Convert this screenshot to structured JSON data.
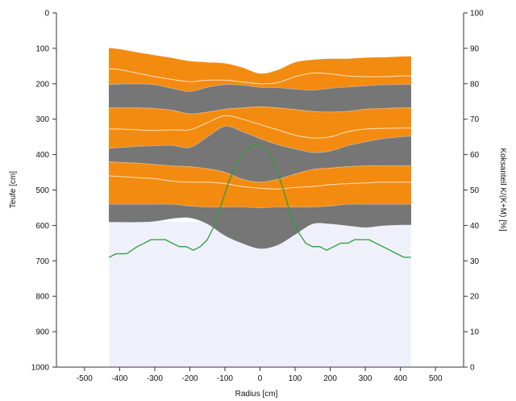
{
  "chart_data": {
    "type": "area",
    "title": "",
    "xlabel": "Radius [cm]",
    "ylabel_left": "Teufe [cm]",
    "ylabel_right": "Koksanteil K/(K+M) [%]",
    "xlim": [
      -580,
      580
    ],
    "ylim_left": [
      0,
      1000
    ],
    "ylim_right": [
      0,
      100
    ],
    "y_left_reversed": true,
    "grid": false,
    "x_ticks": [
      -500,
      -400,
      -300,
      -200,
      -100,
      0,
      100,
      200,
      300,
      400,
      500
    ],
    "x_tick_labels": [
      "-500",
      "-400",
      "-300",
      "-200",
      "-100",
      "0",
      "100",
      "200",
      "300",
      "400",
      "500"
    ],
    "y_left_ticks": [
      0,
      100,
      200,
      300,
      400,
      500,
      600,
      700,
      800,
      900,
      1000
    ],
    "y_left_tick_labels": [
      "0",
      "100",
      "200",
      "300",
      "400",
      "500",
      "600",
      "700",
      "800",
      "900",
      "1000"
    ],
    "y_right_ticks": [
      0,
      10,
      20,
      30,
      40,
      50,
      60,
      70,
      80,
      90,
      100
    ],
    "y_right_tick_labels": [
      "0",
      "10",
      "20",
      "30",
      "40",
      "50",
      "60",
      "70",
      "80",
      "90",
      "100"
    ],
    "colors": {
      "ore": "#f38b10",
      "coke": "#767676",
      "background": "#eef1fa",
      "sublayer_line": "#fde2bf",
      "ratio_line": "#2f9a3a",
      "axis": "#333333"
    },
    "x_positions": [
      -430,
      -400,
      -350,
      -300,
      -250,
      -200,
      -150,
      -100,
      -50,
      0,
      50,
      100,
      150,
      200,
      250,
      300,
      350,
      400,
      430
    ],
    "background_region": {
      "x_range": [
        -430,
        430
      ],
      "y_range": [
        590,
        1000
      ]
    },
    "layer_boundaries": [
      [
        100,
        103,
        112,
        120,
        128,
        137,
        140,
        143,
        155,
        172,
        162,
        140,
        133,
        130,
        130,
        127,
        126,
        124,
        123
      ],
      [
        202,
        201,
        200,
        203,
        213,
        222,
        210,
        202,
        204,
        210,
        211,
        215,
        218,
        213,
        209,
        206,
        203,
        202,
        202
      ],
      [
        268,
        268,
        268,
        270,
        275,
        285,
        280,
        272,
        268,
        265,
        268,
        273,
        278,
        280,
        278,
        272,
        270,
        268,
        268
      ],
      [
        383,
        380,
        377,
        375,
        374,
        380,
        350,
        320,
        335,
        355,
        372,
        384,
        394,
        390,
        375,
        364,
        355,
        350,
        348
      ],
      [
        420,
        422,
        424,
        428,
        432,
        434,
        440,
        450,
        470,
        478,
        470,
        455,
        442,
        438,
        434,
        432,
        432,
        432,
        432
      ],
      [
        540,
        540,
        540,
        540,
        540,
        545,
        548,
        548,
        548,
        550,
        548,
        548,
        548,
        545,
        540,
        540,
        540,
        540,
        540
      ],
      [
        590,
        590,
        590,
        588,
        580,
        578,
        595,
        628,
        650,
        665,
        655,
        625,
        595,
        595,
        600,
        605,
        600,
        598,
        598
      ]
    ],
    "layer_types": [
      "ore",
      "coke",
      "ore",
      "coke",
      "ore",
      "coke"
    ],
    "sublayer_lines": [
      [
        158,
        160,
        170,
        180,
        188,
        194,
        190,
        190,
        195,
        200,
        197,
        180,
        170,
        172,
        178,
        180,
        180,
        178,
        178
      ],
      [
        328,
        328,
        330,
        332,
        330,
        330,
        310,
        290,
        300,
        315,
        330,
        345,
        353,
        350,
        335,
        328,
        326,
        325,
        325
      ],
      [
        460,
        462,
        465,
        468,
        475,
        478,
        478,
        482,
        490,
        495,
        497,
        493,
        490,
        485,
        482,
        480,
        478,
        478,
        478
      ]
    ],
    "coke_ratio": {
      "name": "",
      "x": [
        -430,
        -410,
        -380,
        -350,
        -330,
        -310,
        -290,
        -270,
        -250,
        -230,
        -210,
        -190,
        -170,
        -150,
        -130,
        -110,
        -90,
        -70,
        -50,
        -30,
        -10,
        0,
        10,
        30,
        50,
        70,
        90,
        110,
        130,
        150,
        170,
        190,
        210,
        230,
        250,
        270,
        290,
        310,
        330,
        350,
        370,
        390,
        410,
        430
      ],
      "y": [
        31,
        32,
        32,
        34,
        35,
        36,
        36,
        36,
        35,
        34,
        34,
        33,
        34,
        36,
        40,
        46,
        52,
        57,
        60,
        62,
        63,
        63,
        62,
        60,
        55,
        49,
        42,
        38,
        35,
        34,
        34,
        33,
        34,
        35,
        35,
        36,
        36,
        36,
        35,
        34,
        33,
        32,
        31,
        31
      ]
    }
  }
}
